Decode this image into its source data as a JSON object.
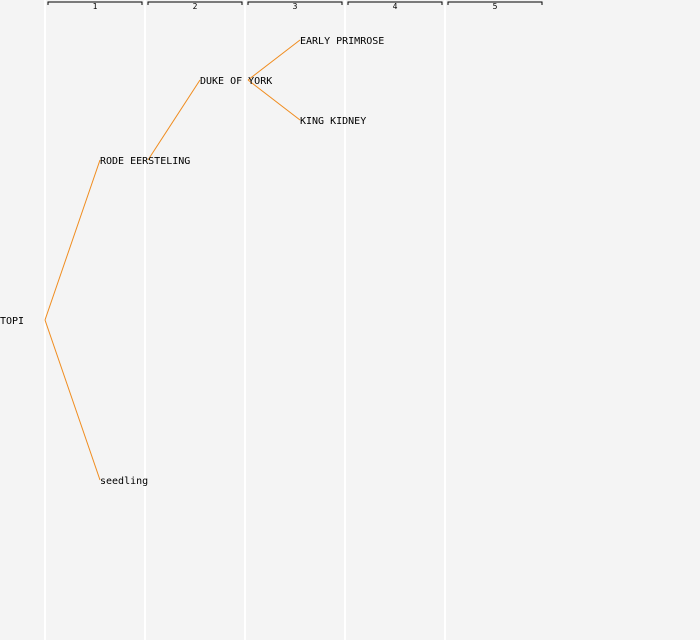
{
  "generations": [
    "1",
    "2",
    "3",
    "4",
    "5"
  ],
  "nodes": [
    {
      "id": "topi",
      "label": "TOPI",
      "gen": 0,
      "row": 0.5
    },
    {
      "id": "rode",
      "label": "RODE EERSTELING",
      "gen": 1,
      "row": 0.25
    },
    {
      "id": "seedling",
      "label": "seedling",
      "gen": 1,
      "row": 0.75
    },
    {
      "id": "duke",
      "label": "DUKE OF YORK",
      "gen": 2,
      "row": 0.125
    },
    {
      "id": "early",
      "label": "EARLY PRIMROSE",
      "gen": 3,
      "row": 0.0625
    },
    {
      "id": "king",
      "label": "KING KIDNEY",
      "gen": 3,
      "row": 0.1875
    }
  ],
  "edges": [
    {
      "from": "topi",
      "to": "rode"
    },
    {
      "from": "topi",
      "to": "seedling"
    },
    {
      "from": "rode",
      "to": "duke"
    },
    {
      "from": "duke",
      "to": "early"
    },
    {
      "from": "duke",
      "to": "king"
    }
  ],
  "colors": {
    "edge": "#f08c1e",
    "background": "#f4f4f4"
  }
}
